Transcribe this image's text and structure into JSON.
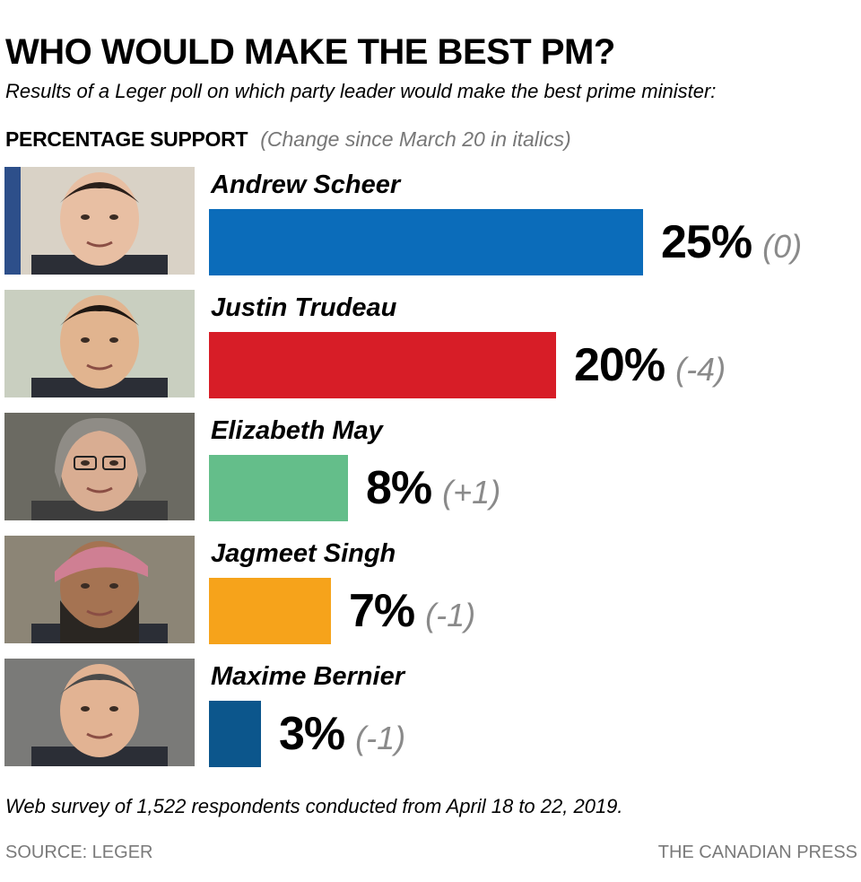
{
  "title": "WHO WOULD MAKE THE BEST PM?",
  "subtitle": "Results of a Leger poll on which party leader would make the best prime minister:",
  "header_label": "PERCENTAGE SUPPORT",
  "header_note": "(Change since March 20  in italics)",
  "note": "Web survey of 1,522 respondents conducted from April 18 to 22, 2019.",
  "source": "SOURCE: LEGER",
  "credit": "THE CANADIAN PRESS",
  "chart_data": {
    "type": "bar",
    "orientation": "horizontal",
    "categories": [
      "Andrew Scheer",
      "Justin Trudeau",
      "Elizabeth May",
      "Jagmeet Singh",
      "Maxime Bernier"
    ],
    "values": [
      25,
      20,
      8,
      7,
      3
    ],
    "value_labels": [
      "25%",
      "20%",
      "8%",
      "7%",
      "3%"
    ],
    "change_labels": [
      "(0)",
      "(-4)",
      "(+1)",
      "(-1)",
      "(-1)"
    ],
    "changes": [
      0,
      -4,
      1,
      -1,
      -1
    ],
    "colors": [
      "#0b6cba",
      "#d71d27",
      "#64be8a",
      "#f6a31b",
      "#0c568c"
    ],
    "photos": [
      "andrew-scheer-photo",
      "justin-trudeau-photo",
      "elizabeth-may-photo",
      "jagmeet-singh-photo",
      "maxime-bernier-photo"
    ],
    "unit": "%",
    "grid": false,
    "legend": "none"
  }
}
